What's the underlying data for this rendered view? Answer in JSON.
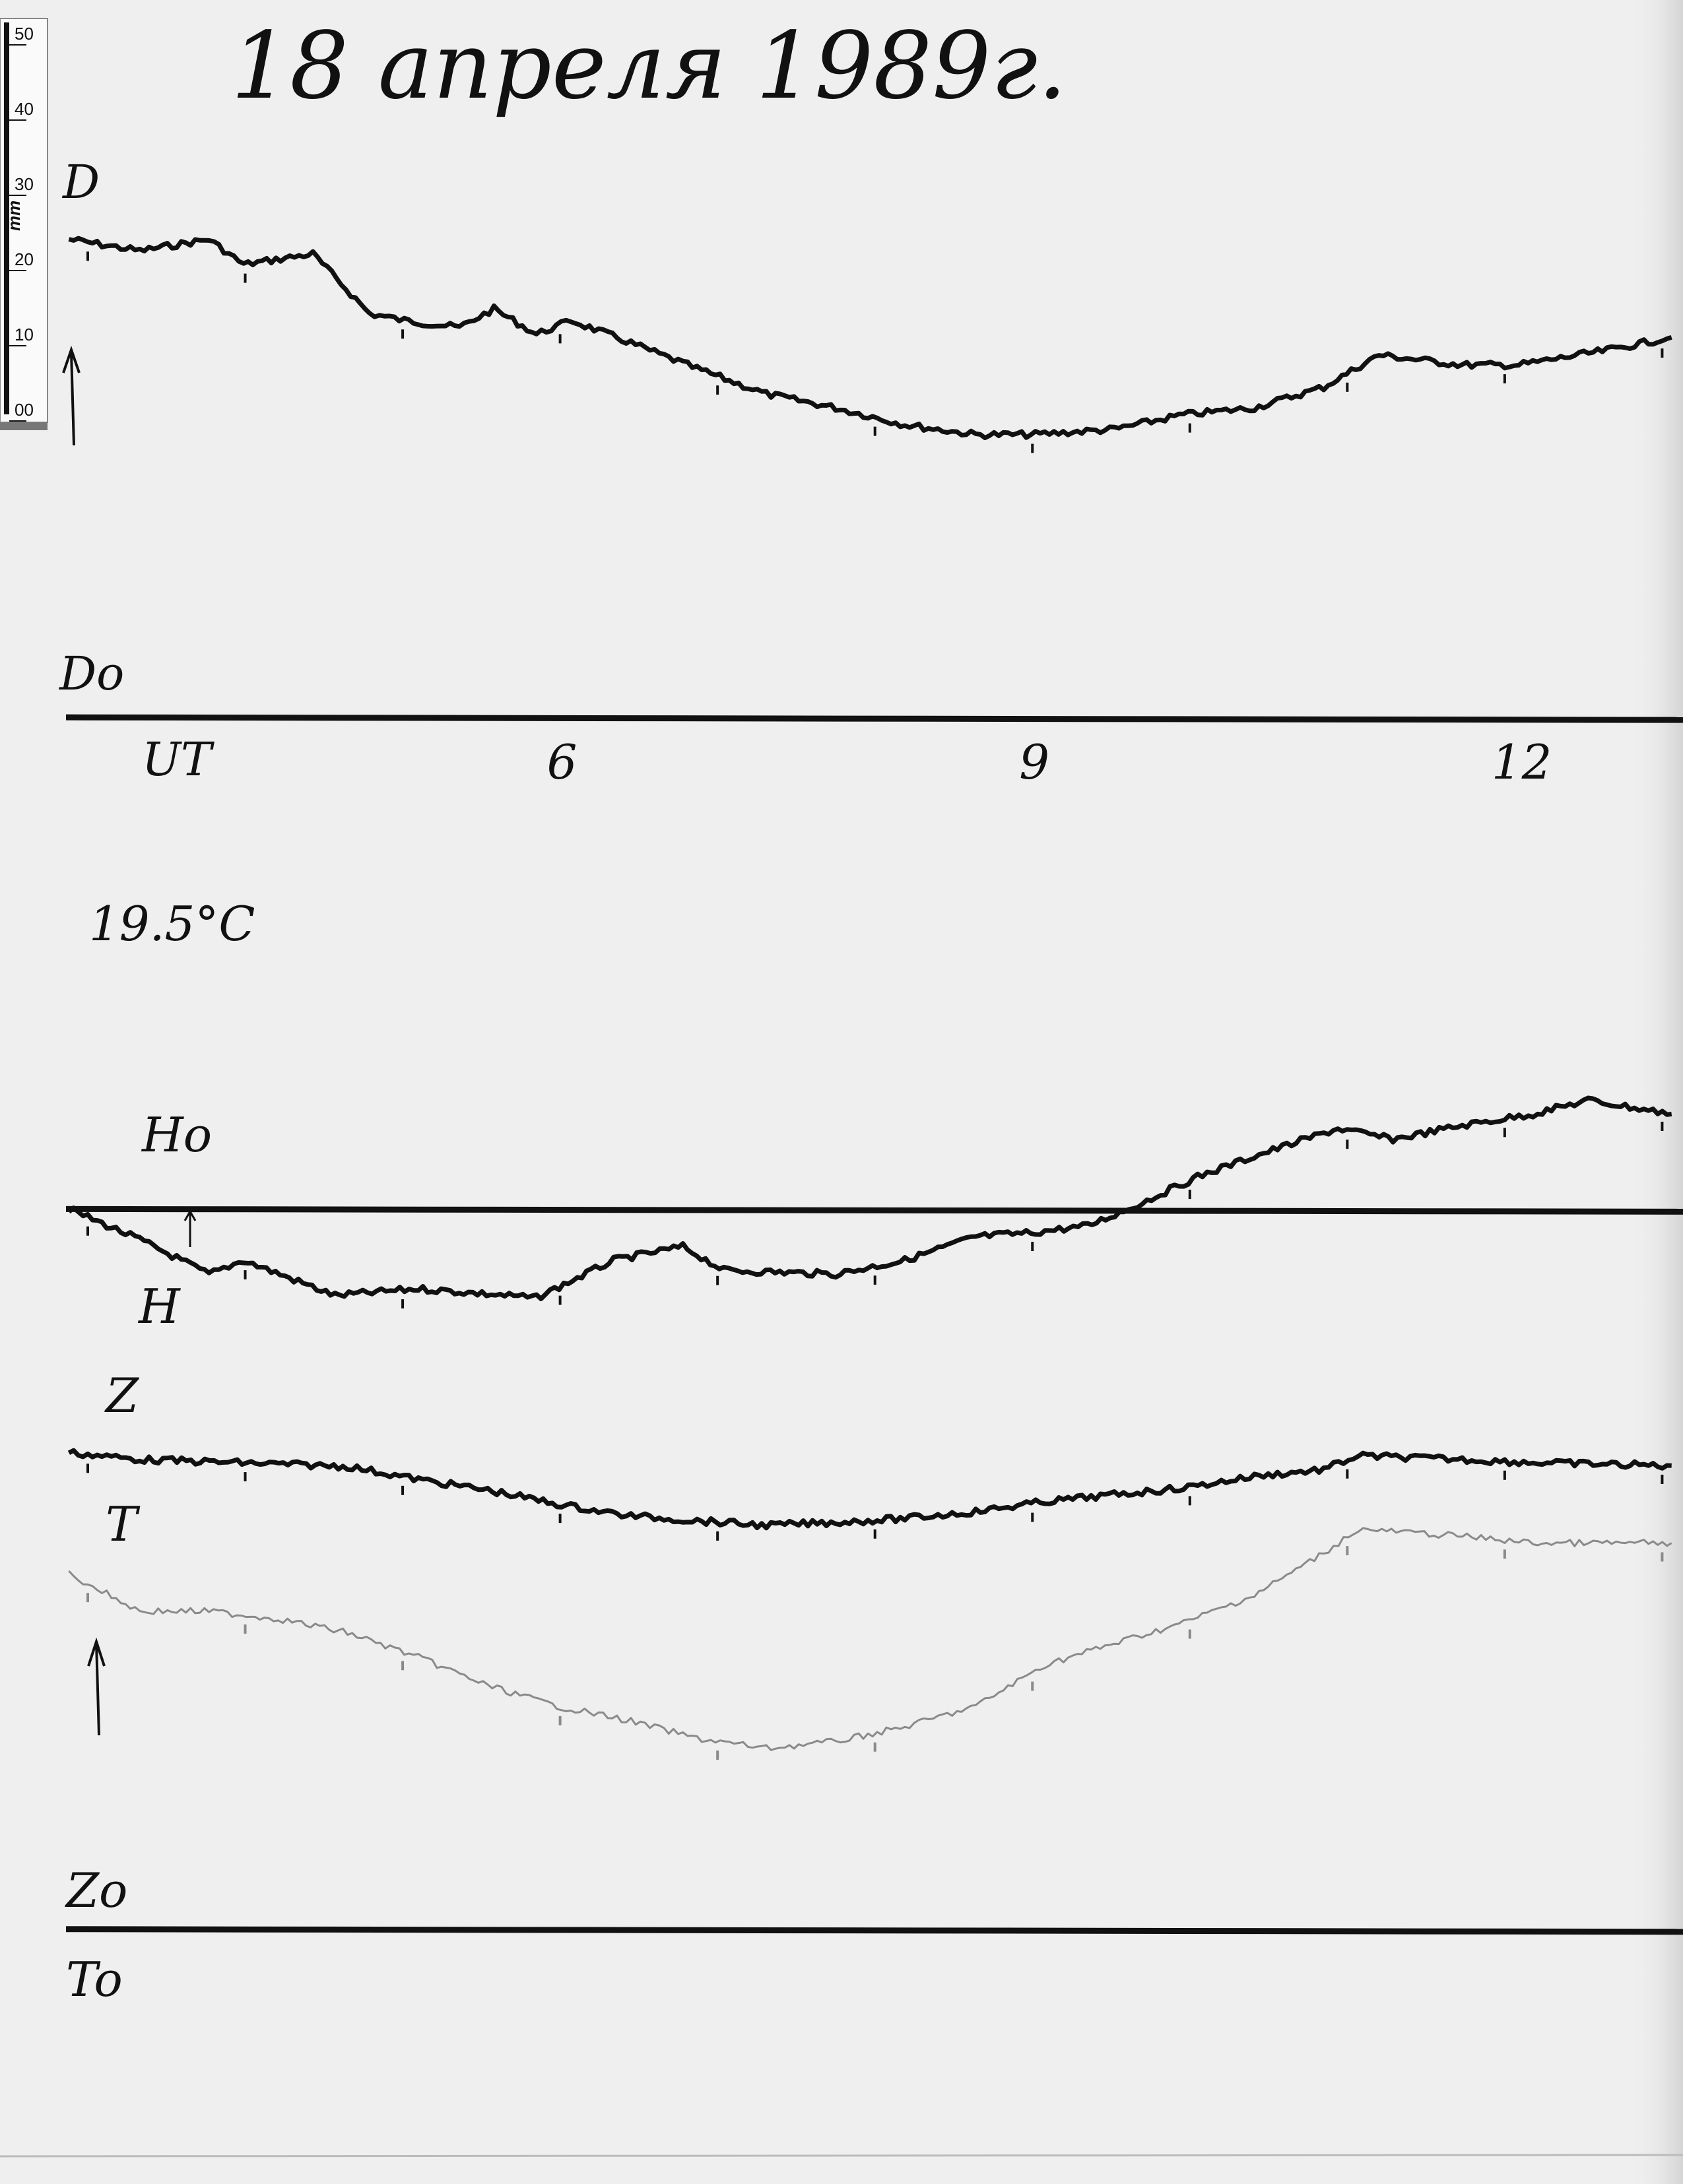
{
  "title": "18 апреля 1989г.",
  "ruler": {
    "labels": [
      "50",
      "40",
      "30",
      "20",
      "10",
      "00"
    ],
    "unit": "mm"
  },
  "annotations": {
    "temperature": "19.5°C",
    "d_label": "D",
    "d0_label": "Do",
    "h_label": "H",
    "h0_label": "Ho",
    "z_label": "Z",
    "z0_label": "Zo",
    "t_label": "T",
    "t0_label": "To"
  },
  "chart_data": {
    "type": "line",
    "title": "18 апреля 1989г.",
    "xlabel": "UT",
    "xticks": [
      "6",
      "9",
      "12"
    ],
    "xtick_values": [
      6,
      9,
      12
    ],
    "xlim": [
      2.9,
      13.1
    ],
    "ylabel": "mm",
    "grid": false,
    "colors": {
      "D": "#111111",
      "H": "#111111",
      "Z": "#111111",
      "T": "#8a8a8a",
      "baseline": "#111111"
    },
    "series": [
      {
        "name": "D",
        "baseline": "Do",
        "x": [
          2.88,
          3.33,
          3.77,
          3.99,
          4.43,
          4.79,
          5.01,
          5.36,
          5.58,
          5.85,
          6.07,
          6.42,
          6.87,
          7.31,
          7.75,
          8.19,
          8.64,
          8.99,
          9.52,
          9.96,
          10.41,
          10.85,
          11.2,
          11.73,
          12.09,
          12.62,
          13.06
        ],
        "y": [
          62.4,
          60.9,
          62.4,
          59.1,
          60.5,
          52.7,
          51.8,
          50.9,
          53.3,
          50.0,
          51.8,
          49.1,
          45.5,
          42.2,
          40.4,
          38.2,
          36.9,
          36.9,
          37.6,
          39.5,
          40.4,
          43.1,
          47.3,
          46.0,
          46.0,
          47.8,
          49.6
        ]
      },
      {
        "name": "H",
        "baseline": "Ho",
        "x": [
          2.88,
          3.33,
          3.77,
          3.99,
          4.57,
          5.1,
          5.85,
          6.34,
          6.78,
          7.04,
          7.75,
          8.19,
          8.64,
          8.99,
          9.35,
          9.61,
          10.05,
          10.41,
          10.94,
          11.29,
          11.73,
          12.18,
          12.53,
          13.06
        ],
        "y": [
          0,
          -4.0,
          -8.5,
          -6.7,
          -11.3,
          -10.4,
          -11.6,
          -6.7,
          -4.9,
          -8.0,
          -8.5,
          -6.7,
          -3.6,
          -3.1,
          -2.2,
          0,
          4.2,
          6.9,
          10.5,
          9.1,
          10.9,
          12.4,
          14.2,
          12.4
        ]
      },
      {
        "name": "Z",
        "baseline": "Zo",
        "x": [
          2.88,
          3.33,
          3.95,
          4.65,
          5.1,
          5.54,
          5.98,
          6.42,
          6.87,
          7.31,
          7.75,
          8.19,
          8.64,
          9.08,
          9.52,
          9.96,
          10.41,
          10.85,
          11.07,
          11.73,
          12.18,
          13.06
        ],
        "y": [
          62.2,
          61.3,
          60.9,
          60.4,
          58.7,
          57.3,
          55.5,
          54.0,
          53.3,
          52.7,
          53.1,
          53.6,
          54.5,
          55.8,
          56.7,
          57.6,
          59.1,
          60.0,
          61.8,
          61.3,
          60.9,
          60.5
        ]
      },
      {
        "name": "T",
        "baseline": "To",
        "x": [
          2.88,
          3.33,
          3.77,
          4.21,
          4.65,
          5.1,
          5.54,
          5.98,
          6.42,
          6.87,
          7.31,
          7.75,
          8.19,
          8.64,
          9.08,
          9.52,
          9.96,
          10.41,
          10.85,
          11.07,
          11.73,
          12.18,
          13.06
        ],
        "y": [
          46.4,
          41.5,
          41.5,
          40.5,
          38.7,
          35.5,
          31.8,
          29.1,
          27.3,
          24.9,
          23.6,
          24.5,
          26.4,
          29.1,
          34.5,
          37.3,
          40.0,
          43.6,
          49.1,
          52.2,
          51.3,
          50.4,
          50.4
        ]
      }
    ]
  }
}
